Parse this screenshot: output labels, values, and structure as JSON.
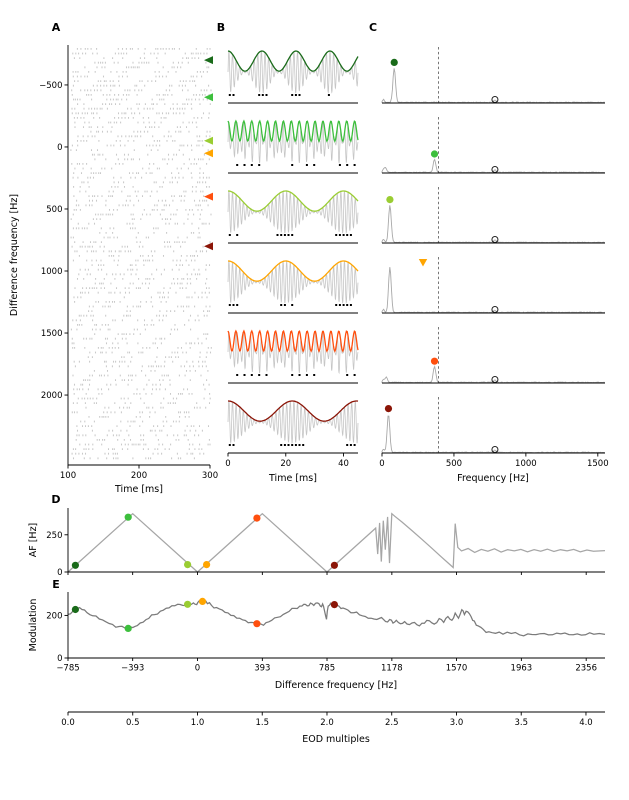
{
  "panel_labels": {
    "A": "A",
    "B": "B",
    "C": "C",
    "D": "D",
    "E": "E"
  },
  "colors": {
    "background": "#ffffff",
    "axis": "#000000",
    "raster": "#c9c9c9",
    "carrier": "#c6c6c6",
    "spectrum": "#a8a8a8",
    "dashed": "#555555",
    "af_line": "#a6a6a6",
    "mod_line": "#7a7a7a",
    "spike_dots": "#000000",
    "series": [
      "#1a6b1a",
      "#3dbf3d",
      "#9acd32",
      "#ffa500",
      "#ff4f0e",
      "#8b1507"
    ]
  },
  "chart_data": [
    {
      "id": "A",
      "type": "raster",
      "xlabel": "Time [ms]",
      "ylabel": "Difference frequency [Hz]",
      "xlim": [
        100,
        300
      ],
      "xticks": [
        100,
        200,
        300
      ],
      "ylim": [
        -822,
        2564
      ],
      "yticks": [
        -500,
        0,
        500,
        1000,
        1500,
        2000
      ],
      "n_rows": 90,
      "marker_dfs": [
        -700,
        -400,
        -50,
        50,
        400,
        800
      ],
      "seed": 11
    },
    {
      "id": "B",
      "type": "beat-waveforms",
      "xlabel": "Time [ms]",
      "xlim": [
        0,
        45
      ],
      "xticks": [
        0,
        20,
        40
      ],
      "carrier_hz": 800,
      "duration_ms": 45,
      "rows": [
        {
          "df": -700,
          "af_hz": 85
        },
        {
          "df": -400,
          "af_hz": 365
        },
        {
          "df": -50,
          "af_hz": 50
        },
        {
          "df": 50,
          "af_hz": 50
        },
        {
          "df": 400,
          "af_hz": 365
        },
        {
          "df": 800,
          "af_hz": 45
        }
      ],
      "seed": 5
    },
    {
      "id": "C",
      "type": "spectra",
      "xlabel": "Frequency [Hz]",
      "xlim": [
        0,
        1550
      ],
      "xticks": [
        0,
        500,
        1000,
        1500
      ],
      "dashed_hz": 393,
      "eod_marker_hz": 785,
      "rows": [
        {
          "peak_hz": 85,
          "peak_height": 0.72,
          "marker": "dot"
        },
        {
          "peak_hz": 365,
          "peak_height": 0.27,
          "marker": "dot",
          "side_peak_hz": 25,
          "side_peak_height": 0.1
        },
        {
          "peak_hz": 55,
          "peak_height": 0.78,
          "marker": "dot"
        },
        {
          "peak_hz": 55,
          "peak_height": 0.95,
          "marker": "triangle",
          "marker_hz": 285
        },
        {
          "peak_hz": 365,
          "peak_height": 0.33,
          "marker": "dot",
          "side_peak_hz": 30,
          "side_peak_height": 0.12
        },
        {
          "peak_hz": 45,
          "peak_height": 0.8,
          "marker": "dot"
        }
      ],
      "seed": 9
    },
    {
      "id": "D",
      "type": "line",
      "ylabel": "AF [Hz]",
      "ylim": [
        0,
        430
      ],
      "yticks": [
        0,
        250
      ],
      "xlim": [
        -785,
        2470
      ],
      "line": [
        [
          -785,
          0
        ],
        [
          -393,
          392
        ],
        [
          0,
          0
        ],
        [
          393,
          392
        ],
        [
          785,
          0
        ],
        [
          1080,
          295
        ],
        [
          1092,
          120
        ],
        [
          1104,
          330
        ],
        [
          1114,
          70
        ],
        [
          1126,
          345
        ],
        [
          1138,
          150
        ],
        [
          1152,
          370
        ],
        [
          1164,
          60
        ],
        [
          1178,
          392
        ],
        [
          1195,
          375
        ],
        [
          1240,
          335
        ],
        [
          1300,
          278
        ],
        [
          1360,
          220
        ],
        [
          1420,
          160
        ],
        [
          1475,
          105
        ],
        [
          1520,
          60
        ],
        [
          1550,
          30
        ],
        [
          1562,
          325
        ],
        [
          1578,
          165
        ],
        [
          1600,
          142
        ],
        [
          1640,
          158
        ],
        [
          1680,
          132
        ],
        [
          1720,
          152
        ],
        [
          1760,
          140
        ],
        [
          1800,
          156
        ],
        [
          1840,
          134
        ],
        [
          1880,
          150
        ],
        [
          1920,
          142
        ],
        [
          1960,
          152
        ],
        [
          2000,
          136
        ],
        [
          2040,
          150
        ],
        [
          2080,
          140
        ],
        [
          2120,
          154
        ],
        [
          2160,
          138
        ],
        [
          2200,
          150
        ],
        [
          2240,
          142
        ],
        [
          2280,
          152
        ],
        [
          2320,
          136
        ],
        [
          2360,
          148
        ],
        [
          2400,
          140
        ],
        [
          2470,
          144
        ]
      ],
      "markers": [
        [
          -740,
          45
        ],
        [
          -420,
          368
        ],
        [
          -60,
          50
        ],
        [
          55,
          50
        ],
        [
          360,
          362
        ],
        [
          830,
          45
        ]
      ]
    },
    {
      "id": "E",
      "type": "line",
      "ylabel": "Modulation",
      "xlabel": "Difference frequency [Hz]",
      "ylim": [
        0,
        310
      ],
      "yticks": [
        0,
        200
      ],
      "xlim": [
        -785,
        2470
      ],
      "xticks": [
        -785,
        -393,
        0,
        393,
        785,
        1178,
        1570,
        1963,
        2356
      ],
      "line": [
        [
          -785,
          205
        ],
        [
          -755,
          220
        ],
        [
          -730,
          232
        ],
        [
          -700,
          228
        ],
        [
          -670,
          213
        ],
        [
          -635,
          198
        ],
        [
          -595,
          183
        ],
        [
          -555,
          170
        ],
        [
          -515,
          158
        ],
        [
          -475,
          148
        ],
        [
          -440,
          141
        ],
        [
          -415,
          138
        ],
        [
          -393,
          143
        ],
        [
          -365,
          152
        ],
        [
          -330,
          168
        ],
        [
          -295,
          186
        ],
        [
          -260,
          204
        ],
        [
          -225,
          220
        ],
        [
          -190,
          234
        ],
        [
          -155,
          245
        ],
        [
          -120,
          252
        ],
        [
          -90,
          247
        ],
        [
          -65,
          256
        ],
        [
          -45,
          249
        ],
        [
          -25,
          259
        ],
        [
          -5,
          251
        ],
        [
          10,
          268
        ],
        [
          25,
          257
        ],
        [
          40,
          266
        ],
        [
          60,
          255
        ],
        [
          85,
          247
        ],
        [
          115,
          237
        ],
        [
          150,
          225
        ],
        [
          185,
          212
        ],
        [
          220,
          199
        ],
        [
          255,
          187
        ],
        [
          290,
          176
        ],
        [
          325,
          167
        ],
        [
          355,
          161
        ],
        [
          385,
          159
        ],
        [
          415,
          166
        ],
        [
          450,
          177
        ],
        [
          485,
          191
        ],
        [
          520,
          205
        ],
        [
          555,
          219
        ],
        [
          590,
          233
        ],
        [
          620,
          244
        ],
        [
          645,
          252
        ],
        [
          665,
          245
        ],
        [
          685,
          258
        ],
        [
          705,
          247
        ],
        [
          725,
          259
        ],
        [
          745,
          244
        ],
        [
          758,
          254
        ],
        [
          770,
          222
        ],
        [
          782,
          182
        ],
        [
          792,
          244
        ],
        [
          807,
          257
        ],
        [
          822,
          249
        ],
        [
          837,
          254
        ],
        [
          857,
          244
        ],
        [
          882,
          235
        ],
        [
          912,
          225
        ],
        [
          947,
          213
        ],
        [
          982,
          203
        ],
        [
          1017,
          195
        ],
        [
          1052,
          187
        ],
        [
          1087,
          181
        ],
        [
          1115,
          190
        ],
        [
          1140,
          171
        ],
        [
          1165,
          181
        ],
        [
          1185,
          164
        ],
        [
          1205,
          177
        ],
        [
          1230,
          161
        ],
        [
          1255,
          171
        ],
        [
          1285,
          157
        ],
        [
          1315,
          167
        ],
        [
          1345,
          151
        ],
        [
          1375,
          163
        ],
        [
          1405,
          175
        ],
        [
          1435,
          159
        ],
        [
          1465,
          185
        ],
        [
          1492,
          167
        ],
        [
          1518,
          195
        ],
        [
          1542,
          177
        ],
        [
          1562,
          211
        ],
        [
          1582,
          187
        ],
        [
          1602,
          227
        ],
        [
          1618,
          204
        ],
        [
          1638,
          217
        ],
        [
          1658,
          195
        ],
        [
          1678,
          174
        ],
        [
          1702,
          151
        ],
        [
          1732,
          135
        ],
        [
          1766,
          123
        ],
        [
          1806,
          116
        ],
        [
          1852,
          112
        ],
        [
          1902,
          115
        ],
        [
          1952,
          109
        ],
        [
          2002,
          113
        ],
        [
          2052,
          110
        ],
        [
          2102,
          115
        ],
        [
          2152,
          109
        ],
        [
          2202,
          113
        ],
        [
          2252,
          110
        ],
        [
          2302,
          113
        ],
        [
          2352,
          109
        ],
        [
          2402,
          112
        ],
        [
          2470,
          111
        ]
      ],
      "markers": [
        [
          -740,
          228
        ],
        [
          -420,
          139
        ],
        [
          -60,
          252
        ],
        [
          30,
          266
        ],
        [
          360,
          161
        ],
        [
          830,
          251
        ]
      ],
      "seed": 3
    },
    {
      "id": "EOD",
      "type": "axis",
      "xlabel": "EOD multiples",
      "xlim": [
        0,
        4.147
      ],
      "xticks": [
        0,
        0.5,
        1,
        1.5,
        2,
        2.5,
        3,
        3.5,
        4
      ]
    }
  ]
}
